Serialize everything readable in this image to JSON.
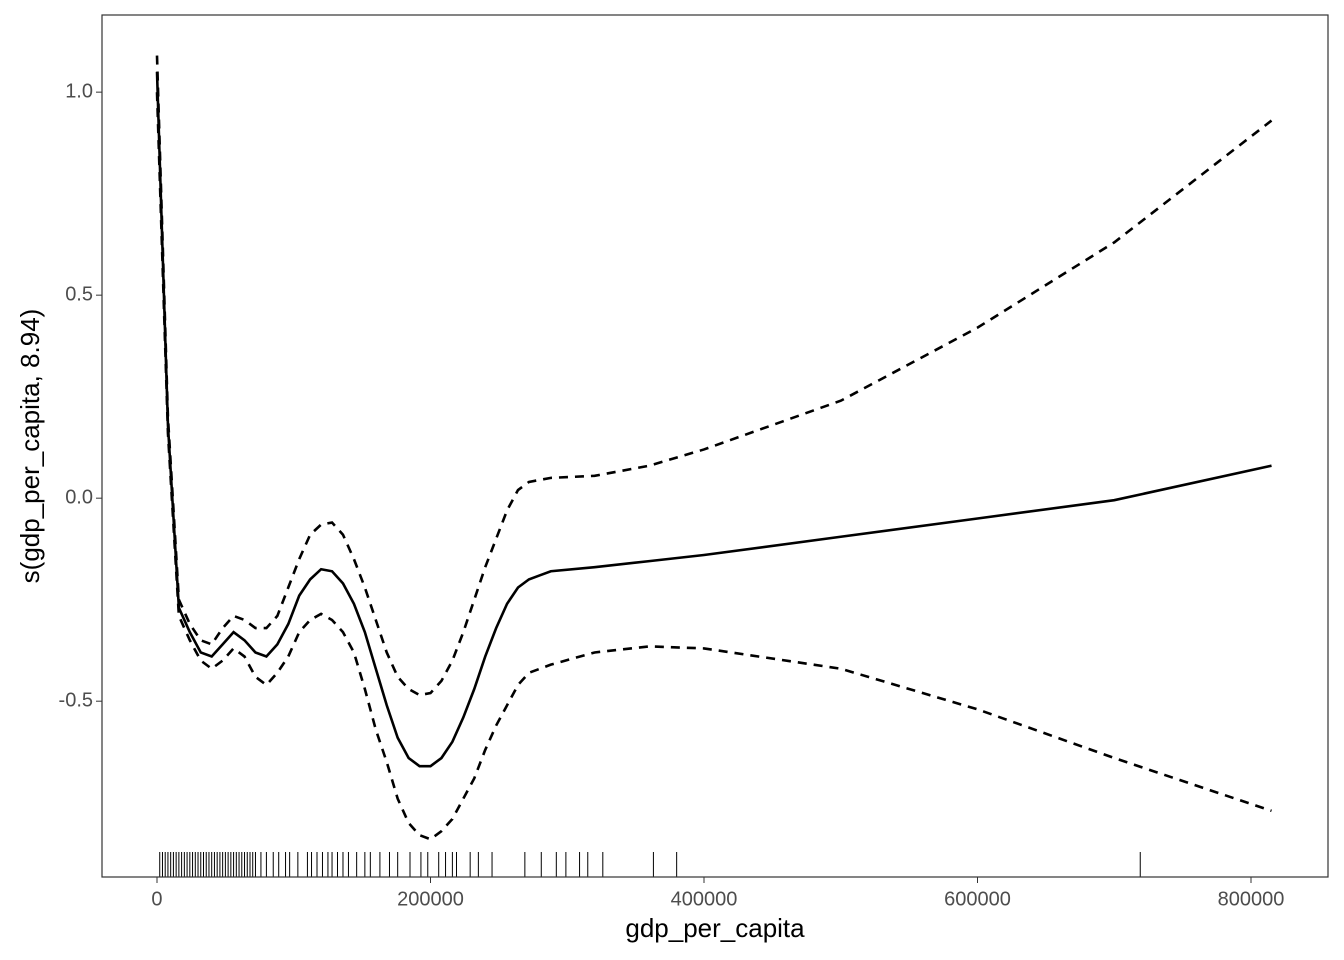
{
  "chart_data": {
    "type": "line",
    "x_label": "gdp_per_capita",
    "y_label": "s(gdp_per_capita, 8.94)",
    "x": [
      0,
      8000,
      16000,
      24000,
      32000,
      40000,
      48000,
      56000,
      64000,
      72000,
      80000,
      88000,
      96000,
      104000,
      112000,
      120000,
      128000,
      136000,
      144000,
      152000,
      160000,
      168000,
      176000,
      184000,
      192000,
      200000,
      208000,
      216000,
      224000,
      232000,
      240000,
      248000,
      256000,
      264000,
      272000,
      280000,
      288000,
      320000,
      360000,
      400000,
      500000,
      600000,
      700000,
      815000
    ],
    "series": [
      {
        "color": "#000000",
        "dash": false,
        "values": [
          1.05,
          0.18,
          -0.27,
          -0.33,
          -0.38,
          -0.39,
          -0.36,
          -0.33,
          -0.35,
          -0.38,
          -0.39,
          -0.36,
          -0.31,
          -0.24,
          -0.2,
          -0.175,
          -0.18,
          -0.21,
          -0.26,
          -0.33,
          -0.42,
          -0.51,
          -0.59,
          -0.64,
          -0.66,
          -0.66,
          -0.64,
          -0.6,
          -0.54,
          -0.47,
          -0.39,
          -0.32,
          -0.26,
          -0.22,
          -0.2,
          -0.19,
          -0.18,
          -0.17,
          -0.155,
          -0.14,
          -0.095,
          -0.05,
          -0.005,
          0.08
        ]
      },
      {
        "color": "#000000",
        "dash": true,
        "values": [
          1.09,
          0.2,
          -0.25,
          -0.31,
          -0.35,
          -0.36,
          -0.32,
          -0.29,
          -0.3,
          -0.32,
          -0.32,
          -0.29,
          -0.22,
          -0.15,
          -0.09,
          -0.065,
          -0.06,
          -0.09,
          -0.15,
          -0.22,
          -0.3,
          -0.38,
          -0.44,
          -0.47,
          -0.485,
          -0.48,
          -0.45,
          -0.4,
          -0.33,
          -0.25,
          -0.17,
          -0.1,
          -0.03,
          0.02,
          0.04,
          0.045,
          0.05,
          0.055,
          0.08,
          0.12,
          0.24,
          0.42,
          0.63,
          0.93
        ]
      },
      {
        "color": "#000000",
        "dash": true,
        "values": [
          1.0,
          0.16,
          -0.29,
          -0.35,
          -0.4,
          -0.42,
          -0.4,
          -0.37,
          -0.39,
          -0.44,
          -0.46,
          -0.43,
          -0.39,
          -0.33,
          -0.3,
          -0.285,
          -0.3,
          -0.33,
          -0.38,
          -0.47,
          -0.57,
          -0.65,
          -0.74,
          -0.8,
          -0.83,
          -0.84,
          -0.82,
          -0.79,
          -0.74,
          -0.69,
          -0.62,
          -0.56,
          -0.51,
          -0.46,
          -0.43,
          -0.42,
          -0.41,
          -0.38,
          -0.365,
          -0.37,
          -0.42,
          -0.52,
          -0.64,
          -0.77
        ]
      }
    ],
    "rug": [
      2000,
      4000,
      6000,
      8000,
      10000,
      12000,
      14000,
      16000,
      18000,
      20000,
      22000,
      24000,
      26000,
      28000,
      30000,
      32000,
      34000,
      36000,
      38000,
      40000,
      42000,
      44000,
      46000,
      48000,
      50000,
      52000,
      54000,
      56000,
      58000,
      60000,
      62000,
      64000,
      66000,
      68000,
      70000,
      72000,
      76000,
      80000,
      85000,
      89000,
      94000,
      97000,
      103000,
      110000,
      113000,
      117000,
      121000,
      125000,
      128000,
      132000,
      136000,
      140000,
      146000,
      152000,
      156000,
      163000,
      170000,
      176000,
      185000,
      193000,
      198000,
      206000,
      211000,
      216000,
      219000,
      229000,
      235000,
      245000,
      269000,
      281000,
      292000,
      299000,
      309000,
      315000,
      326000,
      363000,
      380000,
      719000
    ],
    "xlim": [
      -40219,
      856300
    ],
    "ylim": [
      -0.933,
      1.19
    ],
    "xticks": [
      0,
      200000,
      400000,
      600000,
      800000
    ],
    "yticks": [
      {
        "value": 1.0,
        "label": "1.0"
      },
      0.5,
      {
        "value": 0.0,
        "label": "0.0"
      },
      -0.5
    ],
    "grid": false
  }
}
